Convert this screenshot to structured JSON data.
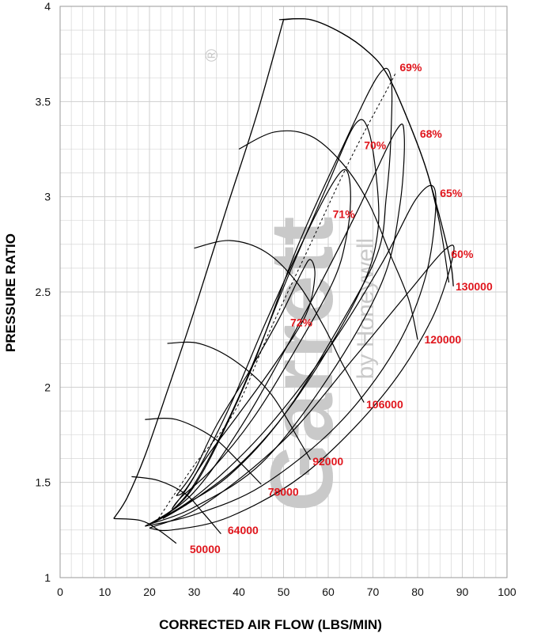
{
  "chart_data": {
    "type": "line",
    "title": "",
    "xlabel": "CORRECTED AIR FLOW (LBS/MIN)",
    "ylabel": "PRESSURE RATIO",
    "xlim": [
      0,
      100
    ],
    "ylim": [
      1,
      4
    ],
    "x_ticks": [
      0,
      10,
      20,
      30,
      40,
      50,
      60,
      70,
      80,
      90,
      100
    ],
    "y_ticks": [
      1,
      1.5,
      2,
      2.5,
      3,
      3.5,
      4
    ],
    "x_tick_labels": [
      "0",
      "10",
      "20",
      "30",
      "40",
      "50",
      "60",
      "70",
      "80",
      "90",
      "100"
    ],
    "y_tick_labels": [
      "1",
      "1.5",
      "2",
      "2.5",
      "3",
      "3.5",
      "4"
    ],
    "grid": true,
    "colors": {
      "line": "#000000",
      "label": "#e0161d",
      "grid": "#cfcfcf",
      "watermark": "#c9c9c9"
    },
    "watermark": {
      "brand": "Garrett",
      "sub": "by Honeywell",
      "mark": "®"
    },
    "surge_line": [
      [
        12,
        1.31
      ],
      [
        15,
        1.42
      ],
      [
        19,
        1.64
      ],
      [
        24,
        1.98
      ],
      [
        30,
        2.4
      ],
      [
        37,
        2.92
      ],
      [
        44,
        3.43
      ],
      [
        50,
        3.93
      ]
    ],
    "choke_line": [
      [
        50,
        3.93
      ],
      [
        56,
        3.93
      ],
      [
        63,
        3.86
      ],
      [
        69,
        3.76
      ],
      [
        73,
        3.65
      ],
      [
        77,
        3.45
      ],
      [
        82,
        3.14
      ],
      [
        87,
        2.7
      ],
      [
        88,
        2.53
      ]
    ],
    "speed_lines": [
      {
        "label": "50000",
        "points": [
          [
            12,
            1.31
          ],
          [
            18,
            1.3
          ],
          [
            22,
            1.25
          ],
          [
            26,
            1.18
          ]
        ]
      },
      {
        "label": "64000",
        "points": [
          [
            16,
            1.53
          ],
          [
            22,
            1.51
          ],
          [
            28,
            1.44
          ],
          [
            32,
            1.34
          ],
          [
            36,
            1.23
          ]
        ]
      },
      {
        "label": "78000",
        "points": [
          [
            19,
            1.83
          ],
          [
            26,
            1.83
          ],
          [
            34,
            1.74
          ],
          [
            40,
            1.61
          ],
          [
            45,
            1.49
          ]
        ]
      },
      {
        "label": "92000",
        "points": [
          [
            24,
            2.23
          ],
          [
            31,
            2.23
          ],
          [
            39,
            2.14
          ],
          [
            47,
            1.97
          ],
          [
            54,
            1.7
          ],
          [
            56,
            1.62
          ]
        ]
      },
      {
        "label": "106000",
        "points": [
          [
            30,
            2.73
          ],
          [
            38,
            2.77
          ],
          [
            46,
            2.71
          ],
          [
            53,
            2.55
          ],
          [
            59,
            2.32
          ],
          [
            63,
            2.13
          ],
          [
            68,
            1.92
          ]
        ]
      },
      {
        "label": "120000",
        "points": [
          [
            40,
            3.25
          ],
          [
            48,
            3.34
          ],
          [
            56,
            3.32
          ],
          [
            63,
            3.18
          ],
          [
            69,
            2.97
          ],
          [
            74,
            2.69
          ],
          [
            78,
            2.46
          ],
          [
            80,
            2.25
          ]
        ]
      },
      {
        "label": "130000",
        "points": [
          [
            49,
            3.93
          ],
          [
            56,
            3.93
          ],
          [
            63,
            3.86
          ],
          [
            69,
            3.76
          ],
          [
            73,
            3.65
          ],
          [
            77,
            3.45
          ],
          [
            82,
            3.14
          ],
          [
            85,
            2.85
          ],
          [
            87,
            2.55
          ]
        ]
      }
    ],
    "efficiency_islands": [
      {
        "label": "72%",
        "points": [
          [
            26,
            1.43
          ],
          [
            30,
            1.56
          ],
          [
            35,
            1.8
          ],
          [
            42,
            2.07
          ],
          [
            49,
            2.36
          ],
          [
            54,
            2.6
          ],
          [
            56,
            2.67
          ],
          [
            57,
            2.58
          ],
          [
            55,
            2.38
          ],
          [
            48,
            2.12
          ],
          [
            40,
            1.86
          ],
          [
            33,
            1.64
          ],
          [
            28,
            1.46
          ],
          [
            26,
            1.43
          ]
        ]
      },
      {
        "label": "71%",
        "points": [
          [
            25,
            1.36
          ],
          [
            30,
            1.53
          ],
          [
            38,
            1.9
          ],
          [
            46,
            2.34
          ],
          [
            55,
            2.8
          ],
          [
            61,
            3.07
          ],
          [
            64,
            3.14
          ],
          [
            65,
            3.0
          ],
          [
            64,
            2.78
          ],
          [
            61,
            2.55
          ],
          [
            52,
            2.17
          ],
          [
            43,
            1.83
          ],
          [
            34,
            1.57
          ],
          [
            27,
            1.42
          ],
          [
            25,
            1.36
          ]
        ]
      },
      {
        "label": "70%",
        "points": [
          [
            23,
            1.31
          ],
          [
            30,
            1.49
          ],
          [
            40,
            1.95
          ],
          [
            51,
            2.58
          ],
          [
            60,
            3.07
          ],
          [
            66,
            3.38
          ],
          [
            69,
            3.35
          ],
          [
            71,
            3.05
          ],
          [
            71,
            2.8
          ],
          [
            68,
            2.55
          ],
          [
            60,
            2.2
          ],
          [
            50,
            1.85
          ],
          [
            40,
            1.59
          ],
          [
            30,
            1.41
          ],
          [
            23,
            1.31
          ]
        ]
      },
      {
        "label": "69%",
        "points": [
          [
            21,
            1.29
          ],
          [
            30,
            1.48
          ],
          [
            42,
            2.05
          ],
          [
            53,
            2.73
          ],
          [
            63,
            3.25
          ],
          [
            71,
            3.63
          ],
          [
            74,
            3.63
          ],
          [
            74,
            3.3
          ],
          [
            73,
            3.0
          ],
          [
            71,
            2.7
          ],
          [
            62,
            2.3
          ],
          [
            50,
            1.85
          ],
          [
            38,
            1.54
          ],
          [
            27,
            1.37
          ],
          [
            21,
            1.29
          ]
        ]
      },
      {
        "label": "68%",
        "points": [
          [
            20,
            1.28
          ],
          [
            30,
            1.45
          ],
          [
            42,
            1.85
          ],
          [
            55,
            2.4
          ],
          [
            66,
            2.9
          ],
          [
            75,
            3.34
          ],
          [
            77,
            3.32
          ],
          [
            76,
            2.95
          ],
          [
            72,
            2.55
          ],
          [
            60,
            2.05
          ],
          [
            45,
            1.6
          ],
          [
            30,
            1.37
          ],
          [
            20,
            1.28
          ]
        ]
      },
      {
        "label": "65%",
        "points": [
          [
            19,
            1.27
          ],
          [
            30,
            1.42
          ],
          [
            45,
            1.75
          ],
          [
            60,
            2.2
          ],
          [
            72,
            2.65
          ],
          [
            80,
            3.0
          ],
          [
            84,
            3.02
          ],
          [
            82,
            2.6
          ],
          [
            75,
            2.2
          ],
          [
            62,
            1.8
          ],
          [
            45,
            1.48
          ],
          [
            30,
            1.33
          ],
          [
            19,
            1.27
          ]
        ]
      },
      {
        "label": "60%",
        "points": [
          [
            20,
            1.26
          ],
          [
            32,
            1.38
          ],
          [
            50,
            1.72
          ],
          [
            66,
            2.16
          ],
          [
            78,
            2.5
          ],
          [
            86,
            2.72
          ],
          [
            88,
            2.7
          ],
          [
            83,
            2.35
          ],
          [
            72,
            1.95
          ],
          [
            55,
            1.55
          ],
          [
            38,
            1.32
          ],
          [
            25,
            1.25
          ],
          [
            20,
            1.26
          ]
        ]
      }
    ],
    "centerline": [
      [
        22,
        1.31
      ],
      [
        30,
        1.59
      ],
      [
        39,
        1.87
      ],
      [
        47,
        2.3
      ],
      [
        56,
        2.75
      ],
      [
        65,
        3.2
      ],
      [
        74,
        3.6
      ],
      [
        75,
        3.65
      ]
    ],
    "annotations": [
      {
        "text": "69%",
        "x": 76,
        "y": 3.68
      },
      {
        "text": "68%",
        "x": 80.5,
        "y": 3.33
      },
      {
        "text": "70%",
        "x": 68,
        "y": 3.27
      },
      {
        "text": "65%",
        "x": 85,
        "y": 3.02
      },
      {
        "text": "71%",
        "x": 61,
        "y": 2.91
      },
      {
        "text": "60%",
        "x": 87.5,
        "y": 2.7
      },
      {
        "text": "130000",
        "x": 88.5,
        "y": 2.53
      },
      {
        "text": "72%",
        "x": 51.5,
        "y": 2.34
      },
      {
        "text": "120000",
        "x": 81.5,
        "y": 2.25
      },
      {
        "text": "106000",
        "x": 68.5,
        "y": 1.91
      },
      {
        "text": "92000",
        "x": 56.5,
        "y": 1.61
      },
      {
        "text": "78000",
        "x": 46.5,
        "y": 1.45
      },
      {
        "text": "64000",
        "x": 37.5,
        "y": 1.25
      },
      {
        "text": "50000",
        "x": 29,
        "y": 1.15
      }
    ]
  }
}
